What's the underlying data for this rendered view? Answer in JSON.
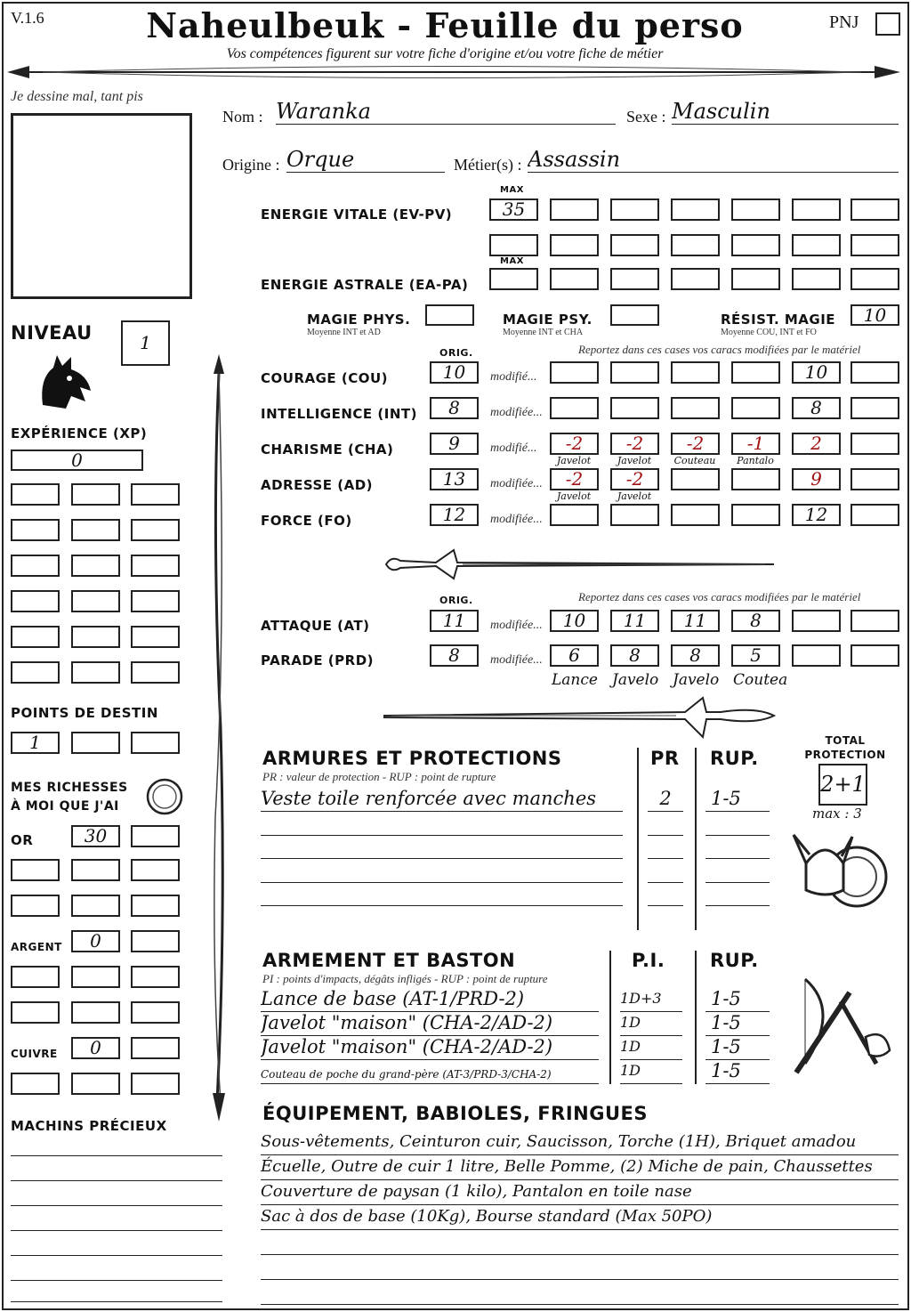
{
  "colors": {
    "ink": "#111111",
    "red_ink": "#a01010"
  },
  "header": {
    "version": "V.1.6",
    "title": "Naheulbeuk - Feuille du perso",
    "subtitle": "Vos compétences figurent sur votre fiche d'origine et/ou votre fiche de métier",
    "pnj_label": "PNJ",
    "pnj_checked": false
  },
  "portrait": {
    "caption": "Je dessine mal, tant pis"
  },
  "level": {
    "label": "NIVEAU",
    "value": "1"
  },
  "xp": {
    "label": "EXPÉRIENCE (XP)",
    "value": "0"
  },
  "destiny": {
    "label": "POINTS DE DESTIN",
    "values": [
      "1",
      "",
      ""
    ]
  },
  "wealth": {
    "label_line1": "MES RICHESSES",
    "label_line2": "À MOI QUE J'AI",
    "or_label": "OR",
    "or_value": "30",
    "argent_label": "ARGENT",
    "argent_value": "0",
    "cuivre_label": "CUIVRE",
    "cuivre_value": "0"
  },
  "precious": {
    "label": "MACHINS PRÉCIEUX"
  },
  "identity": {
    "nom_label": "Nom :",
    "nom": "Waranka",
    "sexe_label": "Sexe :",
    "sexe": "Masculin",
    "origine_label": "Origine :",
    "origine": "Orque",
    "metier_label": "Métier(s) :",
    "metier": "Assassin"
  },
  "energy": {
    "max_label": "MAX",
    "ev_label": "ENERGIE VITALE (EV-PV)",
    "ev_max": "35",
    "ea_label": "ENERGIE ASTRALE (EA-PA)",
    "ea_max": ""
  },
  "magic": [
    {
      "label": "MAGIE PHYS.",
      "sub": "Moyenne INT et AD",
      "value": ""
    },
    {
      "label": "MAGIE PSY.",
      "sub": "Moyenne INT et CHA",
      "value": ""
    },
    {
      "label": "RÉSIST. MAGIE",
      "sub": "Moyenne COU, INT et FO",
      "value": "10"
    }
  ],
  "stats": {
    "orig_label": "ORIG.",
    "report_note": "Reportez dans ces cases vos caracs modifiées par le matériel",
    "rows": [
      {
        "label": "COURAGE (COU)",
        "orig": "10",
        "modified_label": "modifié...",
        "mods": [
          {
            "value": ""
          },
          {
            "value": ""
          },
          {
            "value": ""
          },
          {
            "value": ""
          },
          {
            "value": "10"
          },
          {
            "value": ""
          }
        ],
        "notes": []
      },
      {
        "label": "INTELLIGENCE (INT)",
        "orig": "8",
        "modified_label": "modifiée...",
        "mods": [
          {
            "value": ""
          },
          {
            "value": ""
          },
          {
            "value": ""
          },
          {
            "value": ""
          },
          {
            "value": "8"
          },
          {
            "value": ""
          }
        ],
        "notes": []
      },
      {
        "label": "CHARISME (CHA)",
        "orig": "9",
        "modified_label": "modifié...",
        "mods": [
          {
            "value": "-2",
            "red": true
          },
          {
            "value": "-2",
            "red": true
          },
          {
            "value": "-2",
            "red": true
          },
          {
            "value": "-1",
            "red": true
          },
          {
            "value": "2",
            "red": true
          },
          {
            "value": ""
          }
        ],
        "notes": [
          "Javelot",
          "Javelot",
          "Couteau",
          "Pantalo"
        ]
      },
      {
        "label": "ADRESSE (AD)",
        "orig": "13",
        "modified_label": "modifiée...",
        "mods": [
          {
            "value": "-2",
            "red": true
          },
          {
            "value": "-2",
            "red": true
          },
          {
            "value": ""
          },
          {
            "value": ""
          },
          {
            "value": "9",
            "red": true
          },
          {
            "value": ""
          }
        ],
        "notes": [
          "Javelot",
          "Javelot"
        ]
      },
      {
        "label": "FORCE (FO)",
        "orig": "12",
        "modified_label": "modifiée...",
        "mods": [
          {
            "value": ""
          },
          {
            "value": ""
          },
          {
            "value": ""
          },
          {
            "value": ""
          },
          {
            "value": "12"
          },
          {
            "value": ""
          }
        ],
        "notes": []
      }
    ]
  },
  "combat": {
    "orig_label": "ORIG.",
    "report_note": "Reportez dans ces cases vos caracs modifiées par le matériel",
    "rows": [
      {
        "label": "ATTAQUE (AT)",
        "orig": "11",
        "modified_label": "modifiée...",
        "mods": [
          {
            "value": "10"
          },
          {
            "value": "11"
          },
          {
            "value": "11"
          },
          {
            "value": "8"
          },
          {
            "value": ""
          },
          {
            "value": ""
          }
        ]
      },
      {
        "label": "PARADE (PRD)",
        "orig": "8",
        "modified_label": "modifiée...",
        "mods": [
          {
            "value": "6"
          },
          {
            "value": "8"
          },
          {
            "value": "8"
          },
          {
            "value": "5"
          },
          {
            "value": ""
          },
          {
            "value": ""
          }
        ]
      }
    ],
    "weapon_notes": [
      "Lance",
      "Javelo",
      "Javelo",
      "Coutea"
    ]
  },
  "armor": {
    "title": "ARMURES ET PROTECTIONS",
    "subtitle": "PR : valeur de protection - RUP : point de rupture",
    "pr_header": "PR",
    "rup_header": "RUP.",
    "rows": [
      {
        "name": "Veste toile renforcée avec manches",
        "pr": "2",
        "rup": "1-5"
      },
      {
        "name": "",
        "pr": "",
        "rup": ""
      },
      {
        "name": "",
        "pr": "",
        "rup": ""
      },
      {
        "name": "",
        "pr": "",
        "rup": ""
      },
      {
        "name": "",
        "pr": "",
        "rup": ""
      }
    ],
    "total_label_line1": "TOTAL",
    "total_label_line2": "PROTECTION",
    "total_value": "2+1",
    "max_note": "max : 3"
  },
  "weapons": {
    "title": "ARMEMENT ET BASTON",
    "subtitle": "PI : points d'impacts, dégâts infligés - RUP : point de rupture",
    "pi_header": "P.I.",
    "rup_header": "RUP.",
    "rows": [
      {
        "name": "Lance de base (AT-1/PRD-2)",
        "pi": "1D+3",
        "rup": "1-5"
      },
      {
        "name": "Javelot \"maison\" (CHA-2/AD-2)",
        "pi": "1D",
        "rup": "1-5"
      },
      {
        "name": "Javelot \"maison\" (CHA-2/AD-2)",
        "pi": "1D",
        "rup": "1-5"
      },
      {
        "name": "Couteau de poche du grand-père (AT-3/PRD-3/CHA-2)",
        "pi": "1D",
        "rup": "1-5",
        "small": true
      }
    ]
  },
  "equipment": {
    "title": "ÉQUIPEMENT, BABIOLES, FRINGUES",
    "lines": [
      "Sous-vêtements, Ceinturon cuir, Saucisson, Torche (1H), Briquet amadou",
      "Écuelle, Outre de cuir 1 litre, Belle Pomme, (2) Miche de pain, Chaussettes",
      "Couverture de paysan (1 kilo), Pantalon en toile nase",
      "Sac à dos de base (10Kg), Bourse standard (Max 50PO)",
      "",
      "",
      ""
    ]
  }
}
